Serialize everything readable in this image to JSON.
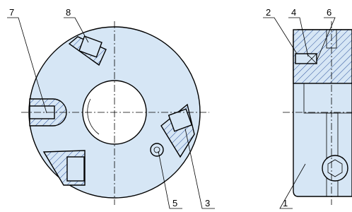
{
  "callouts": [
    "7",
    "8",
    "2",
    "4",
    "6",
    "5",
    "3",
    "1"
  ]
}
